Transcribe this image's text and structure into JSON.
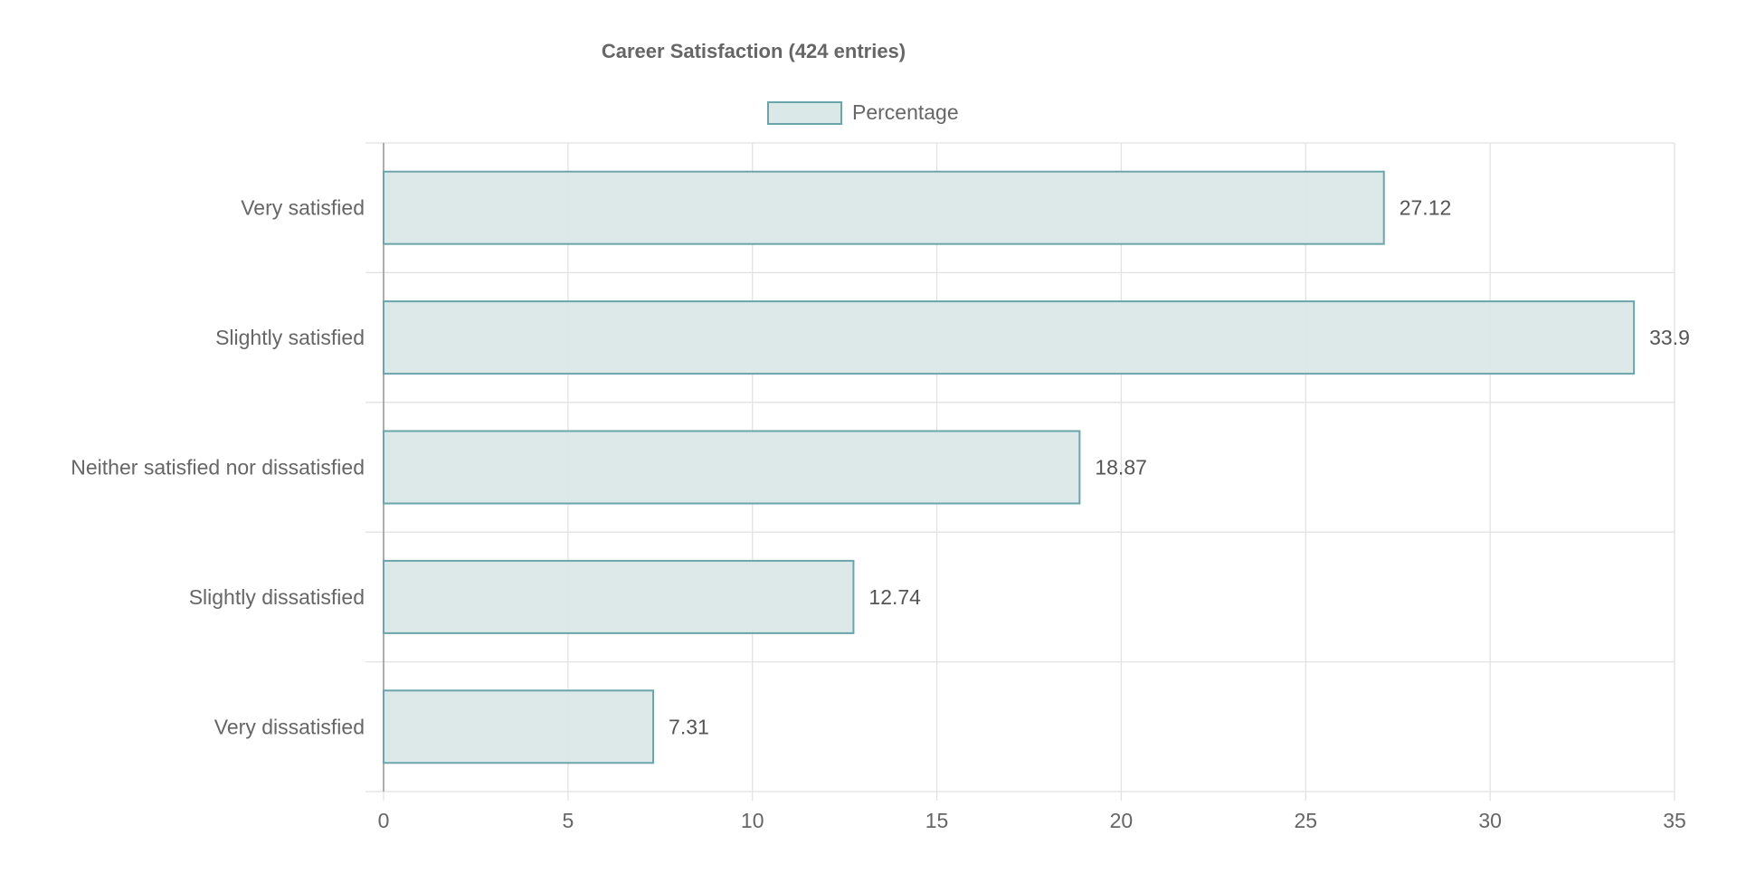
{
  "chart_data": {
    "type": "bar",
    "orientation": "horizontal",
    "title": "Career Satisfaction (424 entries)",
    "categories": [
      "Very satisfied",
      "Slightly satisfied",
      "Neither satisfied nor dissatisfied",
      "Slightly dissatisfied",
      "Very dissatisfied"
    ],
    "series": [
      {
        "name": "Percentage",
        "values": [
          27.12,
          33.9,
          18.87,
          12.74,
          7.31
        ]
      }
    ],
    "data_labels": [
      "27.12",
      "33.9",
      "18.87",
      "12.74",
      "7.31"
    ],
    "xlim": [
      0,
      35
    ],
    "x_ticks": [
      "0",
      "5",
      "10",
      "15",
      "20",
      "25",
      "30",
      "35"
    ],
    "grid": true,
    "legend": "top-center",
    "colors": {
      "bar_fill": "#dbe8e8",
      "bar_stroke": "#6aa5ab",
      "grid": "#e2e2e2",
      "axis": "#999999",
      "text": "#666666",
      "label_text": "#555555"
    }
  }
}
